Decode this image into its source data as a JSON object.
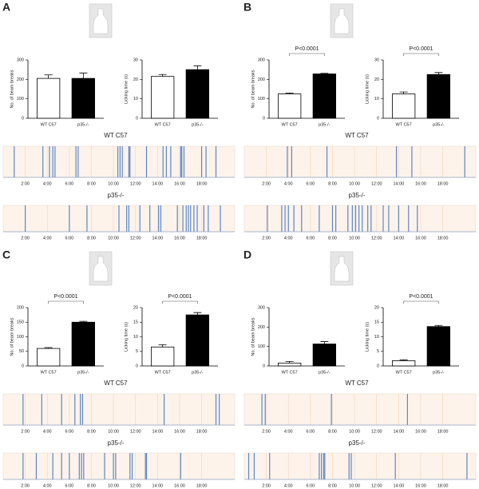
{
  "panel_labels": [
    "A",
    "B",
    "C",
    "D"
  ],
  "chart_data": [
    {
      "type": "bar",
      "ylabel": "No. of beam breaks",
      "categories": [
        "WT C57",
        "p35-/-"
      ],
      "values": [
        205,
        205
      ],
      "errors": [
        18,
        28
      ],
      "colors": [
        "#ffffff",
        "#000000"
      ],
      "edgecolor": "#000000",
      "ylim": [
        0,
        300
      ],
      "yticks": [
        0,
        100,
        200,
        300
      ]
    },
    {
      "type": "bar",
      "ylabel": "Licking time (s)",
      "categories": [
        "WT C57",
        "p35-/-"
      ],
      "values": [
        21.5,
        25
      ],
      "errors": [
        1,
        2
      ],
      "colors": [
        "#ffffff",
        "#000000"
      ],
      "edgecolor": "#000000",
      "ylim": [
        0,
        30
      ],
      "yticks": [
        0,
        10,
        20,
        30
      ]
    },
    {
      "type": "raster",
      "title": "WT C57",
      "events": [
        1.0,
        3.6,
        4.2,
        4.5,
        4.7,
        6.6,
        6.8,
        10.4,
        10.6,
        10.8,
        11.4,
        11.5,
        13.0,
        14.5,
        14.8,
        15.2,
        16.1,
        16.2,
        16.4,
        18.0,
        18.4,
        19.3
      ],
      "color": "#5b86c8",
      "background": "#fdf3ea",
      "xlim": [
        0,
        21
      ],
      "xticks": [
        {
          "value": 2,
          "label": "2:00"
        },
        {
          "value": 4,
          "label": "4:00"
        },
        {
          "value": 6,
          "label": "6:00"
        },
        {
          "value": 8,
          "label": "8:00"
        },
        {
          "value": 10,
          "label": "10:00"
        },
        {
          "value": 12,
          "label": "12:00"
        },
        {
          "value": 14,
          "label": "14:00"
        },
        {
          "value": 16,
          "label": "16:00"
        },
        {
          "value": 18,
          "label": "18:00"
        }
      ]
    },
    {
      "type": "raster",
      "title": "p35-/-",
      "events": [
        2.0,
        6.0,
        7.6,
        10.5,
        11.2,
        11.4,
        12.4,
        13.3,
        14.1,
        14.3,
        15.8,
        16.3,
        16.6,
        16.8,
        17.0,
        17.3,
        17.6,
        18.2,
        18.6,
        19.7
      ],
      "color": "#5b86c8",
      "background": "#fdf3ea",
      "xlim": [
        0,
        21
      ],
      "xticks": [
        {
          "value": 2,
          "label": "2:00"
        },
        {
          "value": 4,
          "label": "4:00"
        },
        {
          "value": 6,
          "label": "6:00"
        },
        {
          "value": 8,
          "label": "8:00"
        },
        {
          "value": 10,
          "label": "10:00"
        },
        {
          "value": 12,
          "label": "12:00"
        },
        {
          "value": 14,
          "label": "14:00"
        },
        {
          "value": 16,
          "label": "16:00"
        },
        {
          "value": 18,
          "label": "18:00"
        }
      ]
    },
    {
      "type": "bar",
      "ylabel": "No. of beam breaks",
      "categories": [
        "WT C57",
        "p35-/-"
      ],
      "values": [
        125,
        228
      ],
      "errors": [
        5,
        3
      ],
      "colors": [
        "#ffffff",
        "#000000"
      ],
      "edgecolor": "#000000",
      "ylim": [
        0,
        300
      ],
      "yticks": [
        0,
        100,
        200,
        300
      ],
      "annotation": "P<0.0001"
    },
    {
      "type": "bar",
      "ylabel": "Licking time (s)",
      "categories": [
        "WT C57",
        "p35-/-"
      ],
      "values": [
        12.5,
        22.5
      ],
      "errors": [
        1,
        1
      ],
      "colors": [
        "#ffffff",
        "#000000"
      ],
      "edgecolor": "#000000",
      "ylim": [
        0,
        30
      ],
      "yticks": [
        0,
        10,
        20,
        30
      ],
      "annotation": "P<0.0001"
    },
    {
      "type": "raster",
      "title": "WT C57",
      "events": [
        3.9,
        4.3,
        7.5,
        13.8,
        15.2,
        20.0
      ],
      "color": "#5b86c8",
      "background": "#fdf3ea",
      "xlim": [
        0,
        21
      ],
      "xticks": [
        {
          "value": 2,
          "label": "2:00"
        },
        {
          "value": 4,
          "label": "4:00"
        },
        {
          "value": 6,
          "label": "6:00"
        },
        {
          "value": 8,
          "label": "8:00"
        },
        {
          "value": 10,
          "label": "10:00"
        },
        {
          "value": 12,
          "label": "12:00"
        },
        {
          "value": 14,
          "label": "14:00"
        },
        {
          "value": 16,
          "label": "16:00"
        },
        {
          "value": 18,
          "label": "18:00"
        }
      ]
    },
    {
      "type": "raster",
      "title": "p35-/-",
      "events": [
        2.1,
        3.4,
        3.7,
        4.0,
        4.5,
        5.2,
        6.8,
        8.0,
        8.3,
        9.4,
        9.8,
        10.1,
        10.4,
        10.7,
        11.2,
        11.5,
        12.6,
        13.1,
        14.0,
        14.9,
        15.7
      ],
      "color": "#5b86c8",
      "background": "#fdf3ea",
      "xlim": [
        0,
        21
      ],
      "xticks": [
        {
          "value": 2,
          "label": "2:00"
        },
        {
          "value": 4,
          "label": "4:00"
        },
        {
          "value": 6,
          "label": "6:00"
        },
        {
          "value": 8,
          "label": "8:00"
        },
        {
          "value": 10,
          "label": "10:00"
        },
        {
          "value": 12,
          "label": "12:00"
        },
        {
          "value": 14,
          "label": "14:00"
        },
        {
          "value": 16,
          "label": "16:00"
        },
        {
          "value": 18,
          "label": "18:00"
        }
      ]
    },
    {
      "type": "bar",
      "ylabel": "No. of beam breaks",
      "categories": [
        "WT C57",
        "p35-/-"
      ],
      "values": [
        60,
        150
      ],
      "errors": [
        3,
        3
      ],
      "colors": [
        "#ffffff",
        "#000000"
      ],
      "edgecolor": "#000000",
      "ylim": [
        0,
        200
      ],
      "yticks": [
        0,
        50,
        100,
        150,
        200
      ],
      "annotation": "P<0.0001"
    },
    {
      "type": "bar",
      "ylabel": "Licking time (s)",
      "categories": [
        "WT C57",
        "p35-/-"
      ],
      "values": [
        6.5,
        17.5
      ],
      "errors": [
        0.8,
        0.8
      ],
      "colors": [
        "#ffffff",
        "#000000"
      ],
      "edgecolor": "#000000",
      "ylim": [
        0,
        20
      ],
      "yticks": [
        0,
        5,
        10,
        15,
        20
      ],
      "annotation": "P<0.0001"
    },
    {
      "type": "raster",
      "title": "WT C57",
      "events": [
        1.8,
        3.5,
        5.3,
        6.5,
        7.0,
        7.2,
        14.6,
        19.3,
        19.6
      ],
      "color": "#5b86c8",
      "background": "#fdf3ea",
      "xlim": [
        0,
        21
      ],
      "xticks": [
        {
          "value": 2,
          "label": "2:00"
        },
        {
          "value": 4,
          "label": "4:00"
        },
        {
          "value": 6,
          "label": "6:00"
        },
        {
          "value": 8,
          "label": "8:00"
        },
        {
          "value": 10,
          "label": "10:00"
        },
        {
          "value": 12,
          "label": "12:00"
        },
        {
          "value": 14,
          "label": "14:00"
        },
        {
          "value": 16,
          "label": "16:00"
        },
        {
          "value": 18,
          "label": "18:00"
        }
      ]
    },
    {
      "type": "raster",
      "title": "p35-/-",
      "events": [
        1.8,
        3.0,
        4.5,
        5.3,
        6.0,
        6.9,
        7.1,
        7.3,
        9.2,
        10.0,
        10.2,
        11.5,
        11.7,
        12.9,
        13.0,
        16.1
      ],
      "color": "#5b86c8",
      "background": "#fdf3ea",
      "xlim": [
        0,
        21
      ],
      "xticks": [
        {
          "value": 2,
          "label": "2:00"
        },
        {
          "value": 4,
          "label": "4:00"
        },
        {
          "value": 6,
          "label": "6:00"
        },
        {
          "value": 8,
          "label": "8:00"
        },
        {
          "value": 10,
          "label": "10:00"
        },
        {
          "value": 12,
          "label": "12:00"
        },
        {
          "value": 14,
          "label": "14:00"
        },
        {
          "value": 16,
          "label": "16:00"
        },
        {
          "value": 18,
          "label": "18:00"
        }
      ]
    },
    {
      "type": "bar",
      "ylabel": "No. of beam breaks",
      "categories": [
        "WT C57",
        "p35-/-"
      ],
      "values": [
        15,
        113
      ],
      "errors": [
        8,
        12
      ],
      "colors": [
        "#ffffff",
        "#000000"
      ],
      "edgecolor": "#000000",
      "ylim": [
        0,
        300
      ],
      "yticks": [
        0,
        100,
        200,
        300
      ]
    },
    {
      "type": "bar",
      "ylabel": "Licking time (s)",
      "categories": [
        "WT C57",
        "p35-/-"
      ],
      "values": [
        1.8,
        13.5
      ],
      "errors": [
        0.3,
        0.4
      ],
      "colors": [
        "#ffffff",
        "#000000"
      ],
      "edgecolor": "#000000",
      "ylim": [
        0,
        20
      ],
      "yticks": [
        0,
        5,
        10,
        15,
        20
      ],
      "annotation": "P<0.0001"
    },
    {
      "type": "raster",
      "title": "WT C57",
      "events": [
        1.6,
        1.9,
        7.9,
        14.8
      ],
      "color": "#5b86c8",
      "background": "#fdf3ea",
      "xlim": [
        0,
        21
      ],
      "xticks": [
        {
          "value": 2,
          "label": "2:00"
        },
        {
          "value": 4,
          "label": "4:00"
        },
        {
          "value": 6,
          "label": "6:00"
        },
        {
          "value": 8,
          "label": "8:00"
        },
        {
          "value": 10,
          "label": "10:00"
        },
        {
          "value": 12,
          "label": "12:00"
        },
        {
          "value": 14,
          "label": "14:00"
        },
        {
          "value": 16,
          "label": "16:00"
        },
        {
          "value": 18,
          "label": "18:00"
        }
      ]
    },
    {
      "type": "raster",
      "title": "p35-/-",
      "events": [
        0.4,
        0.9,
        2.3,
        6.8,
        7.0,
        7.2,
        7.3,
        9.5,
        9.7,
        13.7,
        20.2
      ],
      "color": "#5b86c8",
      "background": "#fdf3ea",
      "xlim": [
        0,
        21
      ],
      "xticks": [
        {
          "value": 2,
          "label": "2:00"
        },
        {
          "value": 4,
          "label": "4:00"
        },
        {
          "value": 6,
          "label": "6:00"
        },
        {
          "value": 8,
          "label": "8:00"
        },
        {
          "value": 10,
          "label": "10:00"
        },
        {
          "value": 12,
          "label": "12:00"
        },
        {
          "value": 14,
          "label": "14:00"
        },
        {
          "value": 16,
          "label": "16:00"
        },
        {
          "value": 18,
          "label": "18:00"
        }
      ]
    }
  ]
}
